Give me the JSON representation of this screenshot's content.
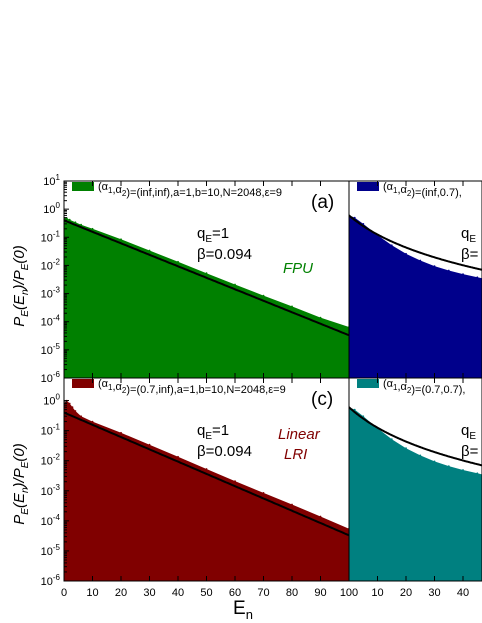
{
  "chart_data": [
    {
      "panel": "(a)",
      "type": "area",
      "legend": "(α1,α2)=(inf,inf),a=1,b=10,N=2048,ε=9",
      "fill_color": "#008000",
      "annotation_q": "qE=1",
      "annotation_beta": "β=0.094",
      "model_label": [
        "FPU"
      ],
      "model_color": "#008000",
      "x": [
        0,
        1,
        2,
        4,
        6,
        10,
        20,
        30,
        40,
        50,
        60,
        70,
        80,
        90,
        100
      ],
      "y": [
        0.5,
        0.48,
        0.42,
        0.34,
        0.28,
        0.2,
        0.085,
        0.034,
        0.0135,
        0.0053,
        0.0021,
        0.00085,
        0.00035,
        0.00014,
        6.5e-05
      ],
      "fit": {
        "q": 1,
        "beta": 0.094,
        "a0": 0.4
      }
    },
    {
      "panel": "",
      "type": "area",
      "legend": "(α1,α2)=(inf,0.7),",
      "fill_color": "#00008b",
      "annotation_q": "qE",
      "annotation_beta": "β=",
      "model_label": [],
      "x": [
        0,
        2,
        5,
        10,
        15,
        20,
        25,
        30,
        35,
        40,
        45,
        50
      ],
      "y": [
        0.6,
        0.5,
        0.3,
        0.12,
        0.052,
        0.026,
        0.015,
        0.0095,
        0.0066,
        0.0049,
        0.0038,
        0.003
      ],
      "fit": {
        "q": 1.3,
        "beta": 0.2,
        "a0": 0.6
      }
    },
    {
      "panel": "(c)",
      "type": "area",
      "legend": "(α1,α2)=(0.7,inf),a=1,b=10,N=2048,ε=9",
      "fill_color": "#800000",
      "annotation_q": "qE=1",
      "annotation_beta": "β=0.094",
      "model_label": [
        "Linear",
        "LRI"
      ],
      "model_color": "#800000",
      "x": [
        0,
        1,
        2,
        3,
        4,
        6,
        10,
        20,
        30,
        40,
        50,
        60,
        70,
        80,
        90,
        100
      ],
      "y": [
        0.8,
        1.0,
        0.8,
        0.6,
        0.45,
        0.3,
        0.2,
        0.085,
        0.034,
        0.0135,
        0.0053,
        0.0021,
        0.00085,
        0.00035,
        0.00014,
        5.5e-05
      ],
      "fit": {
        "q": 1,
        "beta": 0.094,
        "a0": 0.4
      }
    },
    {
      "panel": "",
      "type": "area",
      "legend": "(α1,α2)=(0.7,0.7),",
      "fill_color": "#008080",
      "annotation_q": "qE",
      "annotation_beta": "β=",
      "model_label": [],
      "x": [
        0,
        2,
        5,
        10,
        15,
        20,
        25,
        30,
        35,
        40,
        45,
        50
      ],
      "y": [
        0.6,
        0.5,
        0.3,
        0.12,
        0.052,
        0.026,
        0.015,
        0.0095,
        0.0066,
        0.0049,
        0.0038,
        0.003
      ],
      "fit": {
        "q": 1.3,
        "beta": 0.2,
        "a0": 0.6
      }
    }
  ],
  "axes": {
    "ylabel": "PE(En)/PE(0)",
    "xlabel": "En",
    "y_scale": "log",
    "ylim": [
      1e-06,
      10
    ],
    "y_ticks": [
      "10",
      "10",
      "10",
      "10",
      "10",
      "10",
      "10",
      "10"
    ],
    "y_exponents": [
      "1",
      "0",
      "-1",
      "-2",
      "-3",
      "-4",
      "-5",
      "-6"
    ],
    "y_ticks_lower": [
      "10",
      "10",
      "10",
      "10",
      "10",
      "10",
      "10"
    ],
    "y_exponents_lower": [
      "0",
      "-1",
      "-2",
      "-3",
      "-4",
      "-5",
      "-6"
    ],
    "left_xlim": [
      0,
      100
    ],
    "right_xlim": [
      0,
      50
    ],
    "x_ticks_left": [
      "0",
      "10",
      "20",
      "30",
      "40",
      "50",
      "60",
      "70",
      "80",
      "90",
      "100"
    ],
    "x_ticks_right": [
      "10",
      "20",
      "30",
      "40"
    ]
  }
}
